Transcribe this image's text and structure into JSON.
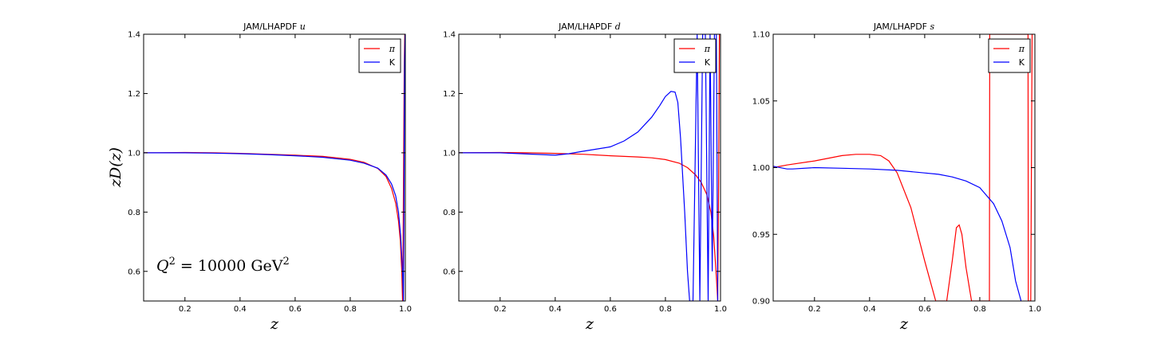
{
  "ylabel": "zD(z)",
  "annotation": {
    "q": "Q",
    "exp": "2",
    "mid": " = 10000 GeV",
    "unit_exp": "2"
  },
  "colors": {
    "pi": "#ff0000",
    "K": "#0000ff"
  },
  "chart_data": [
    {
      "type": "line",
      "title_prefix": "JAM/LHAPDF ",
      "title_var": "u",
      "xlabel": "z",
      "xlim": [
        0.05,
        1.0
      ],
      "ylim": [
        0.5,
        1.4
      ],
      "xticks": [
        0.2,
        0.4,
        0.6,
        0.8,
        1.0
      ],
      "xtick_labels": [
        "0.2",
        "0.4",
        "0.6",
        "0.8",
        "1.0"
      ],
      "yticks": [
        0.6,
        0.8,
        1.0,
        1.2,
        1.4
      ],
      "ytick_labels": [
        "0.6",
        "0.8",
        "1.0",
        "1.2",
        "1.4"
      ],
      "legend": "top-right",
      "series": [
        {
          "name": "π",
          "color": "#ff0000",
          "x": [
            0.05,
            0.1,
            0.2,
            0.3,
            0.4,
            0.5,
            0.6,
            0.7,
            0.8,
            0.85,
            0.9,
            0.93,
            0.95,
            0.965,
            0.975,
            0.982,
            0.987,
            0.99,
            0.992,
            0.994,
            0.996,
            0.998,
            0.999
          ],
          "y": [
            1.0,
            1.0,
            1.001,
            1.0,
            0.998,
            0.995,
            0.992,
            0.988,
            0.978,
            0.968,
            0.947,
            0.92,
            0.88,
            0.83,
            0.77,
            0.7,
            0.6,
            0.5,
            0.7,
            1.0,
            1.3,
            1.4,
            1.4
          ]
        },
        {
          "name": "K",
          "color": "#0000ff",
          "x": [
            0.05,
            0.1,
            0.2,
            0.3,
            0.4,
            0.5,
            0.6,
            0.7,
            0.8,
            0.85,
            0.9,
            0.93,
            0.95,
            0.965,
            0.975,
            0.983,
            0.99,
            0.993,
            0.995,
            0.997,
            0.999
          ],
          "y": [
            1.0,
            1.0,
            1.0,
            0.999,
            0.997,
            0.994,
            0.99,
            0.985,
            0.975,
            0.965,
            0.948,
            0.925,
            0.895,
            0.855,
            0.8,
            0.72,
            0.6,
            0.5,
            0.8,
            1.3,
            1.4
          ]
        }
      ]
    },
    {
      "type": "line",
      "title_prefix": "JAM/LHAPDF ",
      "title_var": "d",
      "xlabel": "z",
      "xlim": [
        0.05,
        1.0
      ],
      "ylim": [
        0.5,
        1.4
      ],
      "xticks": [
        0.2,
        0.4,
        0.6,
        0.8,
        1.0
      ],
      "xtick_labels": [
        "0.2",
        "0.4",
        "0.6",
        "0.8",
        "1.0"
      ],
      "yticks": [
        0.6,
        0.8,
        1.0,
        1.2,
        1.4
      ],
      "ytick_labels": [
        "0.6",
        "0.8",
        "1.0",
        "1.2",
        "1.4"
      ],
      "legend": "top-right",
      "series": [
        {
          "name": "π",
          "color": "#ff0000",
          "x": [
            0.05,
            0.2,
            0.3,
            0.4,
            0.5,
            0.6,
            0.7,
            0.75,
            0.8,
            0.85,
            0.88,
            0.91,
            0.93,
            0.95,
            0.965,
            0.975,
            0.985,
            0.99,
            0.993,
            0.996,
            0.998
          ],
          "y": [
            1.0,
            1.001,
            1.0,
            0.998,
            0.995,
            0.99,
            0.986,
            0.983,
            0.977,
            0.965,
            0.95,
            0.925,
            0.9,
            0.86,
            0.8,
            0.72,
            0.58,
            0.5,
            0.9,
            1.4,
            1.4
          ]
        },
        {
          "name": "K",
          "color": "#0000ff",
          "x": [
            0.05,
            0.2,
            0.3,
            0.35,
            0.4,
            0.45,
            0.5,
            0.6,
            0.65,
            0.7,
            0.75,
            0.78,
            0.8,
            0.82,
            0.835,
            0.845,
            0.855,
            0.87,
            0.88,
            0.888,
            0.9,
            0.915,
            0.925,
            0.935,
            0.945,
            0.955,
            0.962,
            0.97,
            0.978,
            0.985,
            0.99
          ],
          "y": [
            1.0,
            1.0,
            0.996,
            0.994,
            0.992,
            0.997,
            1.005,
            1.02,
            1.04,
            1.07,
            1.12,
            1.16,
            1.19,
            1.207,
            1.205,
            1.17,
            1.05,
            0.8,
            0.6,
            0.5,
            0.5,
            1.4,
            0.5,
            1.4,
            1.4,
            0.5,
            1.4,
            0.6,
            1.4,
            1.4,
            0.5
          ]
        }
      ]
    },
    {
      "type": "line",
      "title_prefix": "JAM/LHAPDF ",
      "title_var": "s",
      "xlabel": "z",
      "xlim": [
        0.05,
        1.0
      ],
      "ylim": [
        0.9,
        1.1
      ],
      "xticks": [
        0.2,
        0.4,
        0.6,
        0.8,
        1.0
      ],
      "xtick_labels": [
        "0.2",
        "0.4",
        "0.6",
        "0.8",
        "1.0"
      ],
      "yticks": [
        0.9,
        0.95,
        1.0,
        1.05,
        1.1
      ],
      "ytick_labels": [
        "0.90",
        "0.95",
        "1.00",
        "1.05",
        "1.10"
      ],
      "legend": "top-right",
      "series": [
        {
          "name": "π",
          "color": "#ff0000",
          "x": [
            0.05,
            0.1,
            0.2,
            0.3,
            0.35,
            0.4,
            0.44,
            0.47,
            0.5,
            0.55,
            0.6,
            0.64,
            0.66,
            0.68,
            0.7,
            0.715,
            0.725,
            0.735,
            0.75,
            0.77,
            0.78,
            0.8,
            0.835,
            0.836,
            0.84,
            0.975,
            0.976,
            0.985,
            0.99,
            0.993
          ],
          "y": [
            1.0,
            1.002,
            1.005,
            1.009,
            1.01,
            1.01,
            1.009,
            1.005,
            0.996,
            0.97,
            0.93,
            0.9,
            0.9,
            0.9,
            0.93,
            0.955,
            0.957,
            0.95,
            0.925,
            0.9,
            0.9,
            0.9,
            0.9,
            1.1,
            1.1,
            1.1,
            0.9,
            0.9,
            1.1,
            1.1
          ]
        },
        {
          "name": "K",
          "color": "#0000ff",
          "x": [
            0.05,
            0.1,
            0.12,
            0.2,
            0.3,
            0.4,
            0.5,
            0.6,
            0.65,
            0.7,
            0.75,
            0.8,
            0.85,
            0.88,
            0.91,
            0.93,
            0.95
          ],
          "y": [
            1.001,
            0.999,
            0.999,
            1.0,
            0.9995,
            0.999,
            0.998,
            0.996,
            0.995,
            0.993,
            0.99,
            0.985,
            0.973,
            0.96,
            0.94,
            0.915,
            0.9
          ]
        }
      ]
    }
  ]
}
